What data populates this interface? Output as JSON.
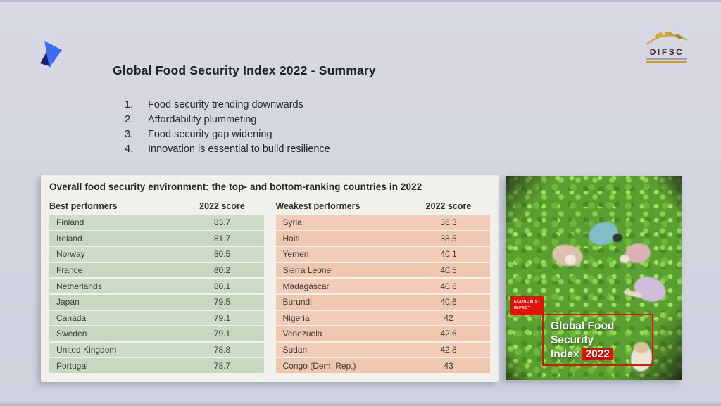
{
  "slide": {
    "title": "Global Food Security Index 2022 - Summary",
    "bullets": [
      {
        "num": "1.",
        "text": "Food security trending downwards"
      },
      {
        "num": "2.",
        "text": "Affordability plummeting"
      },
      {
        "num": "3.",
        "text": "Food security gap widening"
      },
      {
        "num": "4.",
        "text": "Innovation is essential to build resilience"
      }
    ]
  },
  "logos": {
    "difsc_label": "DIFSC"
  },
  "chart_data": {
    "type": "table",
    "title": "Overall food security environment: the top- and bottom-ranking countries in 2022",
    "tables": [
      {
        "name": "Best performers",
        "score_header": "2022 score",
        "rows": [
          [
            "Finland",
            83.7
          ],
          [
            "Ireland",
            81.7
          ],
          [
            "Norway",
            80.5
          ],
          [
            "France",
            80.2
          ],
          [
            "Netherlands",
            80.1
          ],
          [
            "Japan",
            79.5
          ],
          [
            "Canada",
            79.1
          ],
          [
            "Sweden",
            79.1
          ],
          [
            "United Kingdom",
            78.8
          ],
          [
            "Portugal",
            78.7
          ]
        ]
      },
      {
        "name": "Weakest performers",
        "score_header": "2022 score",
        "rows": [
          [
            "Syria",
            36.3
          ],
          [
            "Haiti",
            38.5
          ],
          [
            "Yemen",
            40.1
          ],
          [
            "Sierra Leone",
            40.5
          ],
          [
            "Madagascar",
            40.6
          ],
          [
            "Burundi",
            40.6
          ],
          [
            "Nigeria",
            42
          ],
          [
            "Venezuela",
            42.6
          ],
          [
            "Sudan",
            42.8
          ],
          [
            "Congo (Dem. Rep.)",
            43
          ]
        ]
      }
    ]
  },
  "cover": {
    "publisher_badge": [
      "ECONOMIST",
      "IMPACT"
    ],
    "title_lines": [
      "Global Food",
      "Security",
      "Index"
    ],
    "year": "2022"
  },
  "colors": {
    "accent_red": "#e3120b",
    "best_row_green": "#cbdcc6",
    "weakest_row_salmon": "#f2ccb8",
    "background": "#d3d5e1"
  }
}
